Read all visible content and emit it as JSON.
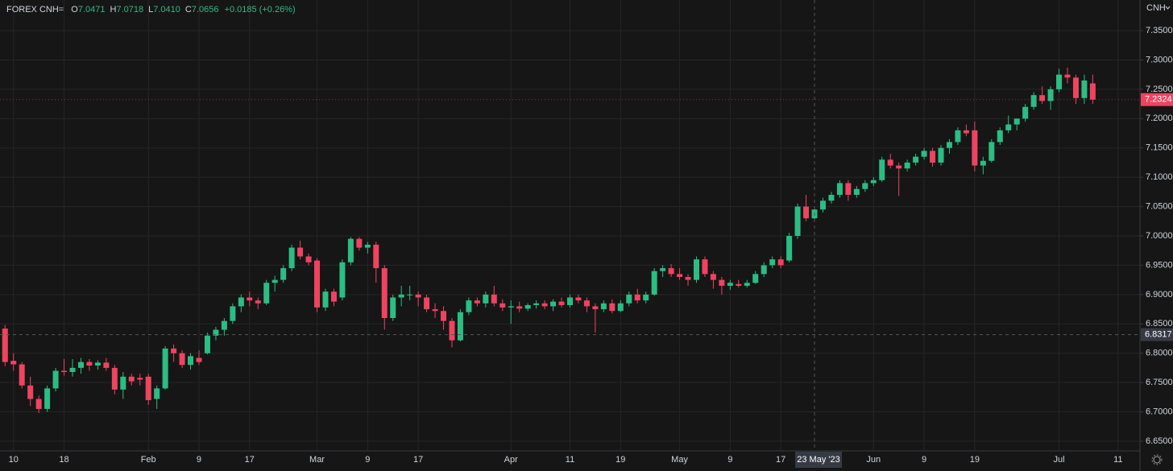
{
  "chart_data": {
    "type": "candlestick",
    "symbol": "FOREX CNH=",
    "ohlc_legend": [
      {
        "label": "O",
        "value": "7.0471"
      },
      {
        "label": "H",
        "value": "7.0718"
      },
      {
        "label": "L",
        "value": "7.0410"
      },
      {
        "label": "C",
        "value": "7.0656"
      }
    ],
    "change": "+0.0185 (+0.26%)",
    "currency": "CNH",
    "up_color": "#2bbd84",
    "down_color": "#ee4460",
    "grid": true,
    "xlim": [
      -0.6,
      134.6
    ],
    "ylim": [
      6.6335,
      7.4022
    ],
    "yticks": [
      {
        "value": 7.35,
        "label": "7.3500"
      },
      {
        "value": 7.3,
        "label": "7.3000"
      },
      {
        "value": 7.25,
        "label": "7.2500"
      },
      {
        "value": 7.2,
        "label": "7.2000"
      },
      {
        "value": 7.15,
        "label": "7.1500"
      },
      {
        "value": 7.1,
        "label": "7.1000"
      },
      {
        "value": 7.05,
        "label": "7.0500"
      },
      {
        "value": 7.0,
        "label": "7.0000"
      },
      {
        "value": 6.95,
        "label": "6.9500"
      },
      {
        "value": 6.9,
        "label": "6.9000"
      },
      {
        "value": 6.85,
        "label": "6.8500"
      },
      {
        "value": 6.8,
        "label": "6.8000"
      },
      {
        "value": 6.75,
        "label": "6.7500"
      },
      {
        "value": 6.7,
        "label": "6.7000"
      },
      {
        "value": 6.65,
        "label": "6.6500"
      }
    ],
    "xticks": [
      {
        "value": 1,
        "label": "10"
      },
      {
        "value": 7,
        "label": "18"
      },
      {
        "value": 17,
        "label": "Feb"
      },
      {
        "value": 23,
        "label": "9"
      },
      {
        "value": 29,
        "label": "17"
      },
      {
        "value": 37,
        "label": "Mar"
      },
      {
        "value": 43,
        "label": "9"
      },
      {
        "value": 49,
        "label": "17"
      },
      {
        "value": 60,
        "label": "Apr"
      },
      {
        "value": 67,
        "label": "11"
      },
      {
        "value": 73,
        "label": "19"
      },
      {
        "value": 80,
        "label": "May"
      },
      {
        "value": 86,
        "label": "9"
      },
      {
        "value": 92,
        "label": "17"
      },
      {
        "value": 103,
        "label": "Jun"
      },
      {
        "value": 109,
        "label": "9"
      },
      {
        "value": 115,
        "label": "19"
      },
      {
        "value": 125,
        "label": "Jul"
      },
      {
        "value": 132,
        "label": "11"
      }
    ],
    "crosshair": {
      "x": 96,
      "date": "23 May '23",
      "price": 6.8317
    },
    "open": [
      6.842,
      6.787,
      6.781,
      6.745,
      6.722,
      6.705,
      6.74,
      6.77,
      6.768,
      6.775,
      6.785,
      6.779,
      6.784,
      6.775,
      6.738,
      6.76,
      6.758,
      6.76,
      6.722,
      6.74,
      6.808,
      6.8,
      6.78,
      6.792,
      6.8,
      6.83,
      6.84,
      6.855,
      6.88,
      6.895,
      6.89,
      6.885,
      6.92,
      6.925,
      6.945,
      6.98,
      6.965,
      6.958,
      6.878,
      6.905,
      6.895,
      6.955,
      6.995,
      6.98,
      6.985,
      6.945,
      6.86,
      6.895,
      6.9,
      6.9,
      6.895,
      6.875,
      6.872,
      6.855,
      6.822,
      6.87,
      6.89,
      6.885,
      6.9,
      6.885,
      6.878,
      6.88,
      6.876,
      6.882,
      6.885,
      6.88,
      6.888,
      6.882,
      6.895,
      6.89,
      6.88,
      6.875,
      6.885,
      6.872,
      6.885,
      6.9,
      6.89,
      6.9,
      6.94,
      6.945,
      6.935,
      6.93,
      6.925,
      6.96,
      6.935,
      6.925,
      6.915,
      6.918,
      6.915,
      6.92,
      6.935,
      6.95,
      6.96,
      6.958,
      7.0,
      7.05,
      7.03,
      7.045,
      7.06,
      7.07,
      7.09,
      7.07,
      7.08,
      7.09,
      7.095,
      7.13,
      7.12,
      7.115,
      7.125,
      7.135,
      7.145,
      7.125,
      7.15,
      7.16,
      7.18,
      7.18,
      7.12,
      7.128,
      7.16,
      7.18,
      7.19,
      7.2,
      7.22,
      7.24,
      7.23,
      7.25,
      7.275,
      7.27,
      7.235,
      7.26
    ],
    "high": [
      6.848,
      6.8,
      6.785,
      6.76,
      6.728,
      6.745,
      6.775,
      6.79,
      6.79,
      6.792,
      6.79,
      6.788,
      6.792,
      6.78,
      6.768,
      6.765,
      6.765,
      6.765,
      6.745,
      6.812,
      6.815,
      6.805,
      6.8,
      6.805,
      6.835,
      6.845,
      6.86,
      6.885,
      6.9,
      6.905,
      6.895,
      6.925,
      6.932,
      6.95,
      6.985,
      6.992,
      6.97,
      6.962,
      6.91,
      6.91,
      6.96,
      6.998,
      6.998,
      6.99,
      6.99,
      6.95,
      6.9,
      6.915,
      6.915,
      6.905,
      6.9,
      6.885,
      6.88,
      6.86,
      6.875,
      6.895,
      6.895,
      6.905,
      6.915,
      6.892,
      6.89,
      6.888,
      6.885,
      6.89,
      6.89,
      6.892,
      6.895,
      6.9,
      6.9,
      6.895,
      6.885,
      6.89,
      6.892,
      6.89,
      6.905,
      6.91,
      6.905,
      6.945,
      6.95,
      6.952,
      6.945,
      6.935,
      6.965,
      6.965,
      6.94,
      6.93,
      6.925,
      6.925,
      6.925,
      6.94,
      6.955,
      6.965,
      6.965,
      7.005,
      7.055,
      7.07,
      7.05,
      7.065,
      7.075,
      7.095,
      7.095,
      7.085,
      7.095,
      7.1,
      7.135,
      7.14,
      7.125,
      7.13,
      7.14,
      7.15,
      7.15,
      7.155,
      7.165,
      7.185,
      7.19,
      7.195,
      7.135,
      7.165,
      7.185,
      7.205,
      7.2,
      7.225,
      7.245,
      7.255,
      7.255,
      7.285,
      7.287,
      7.275,
      7.275,
      7.275
    ],
    "low": [
      6.778,
      6.77,
      6.74,
      6.71,
      6.698,
      6.7,
      6.735,
      6.762,
      6.76,
      6.765,
      6.77,
      6.772,
      6.77,
      6.73,
      6.722,
      6.745,
      6.745,
      6.712,
      6.705,
      6.738,
      6.785,
      6.775,
      6.772,
      6.78,
      6.798,
      6.822,
      6.83,
      6.85,
      6.87,
      6.88,
      6.875,
      6.882,
      6.905,
      6.92,
      6.94,
      6.96,
      6.95,
      6.87,
      6.872,
      6.88,
      6.89,
      6.95,
      6.975,
      6.97,
      6.92,
      6.84,
      6.855,
      6.88,
      6.89,
      6.88,
      6.87,
      6.86,
      6.84,
      6.81,
      6.82,
      6.865,
      6.88,
      6.878,
      6.88,
      6.872,
      6.85,
      6.87,
      6.872,
      6.876,
      6.875,
      6.872,
      6.878,
      6.878,
      6.885,
      6.87,
      6.835,
      6.87,
      6.868,
      6.87,
      6.88,
      6.885,
      6.885,
      6.898,
      6.93,
      6.93,
      6.925,
      6.915,
      6.92,
      6.93,
      6.91,
      6.9,
      6.908,
      6.912,
      6.912,
      6.918,
      6.93,
      6.945,
      6.945,
      6.955,
      6.995,
      7.025,
      7.025,
      7.04,
      7.055,
      7.065,
      7.06,
      7.065,
      7.075,
      7.085,
      7.092,
      7.115,
      7.068,
      7.11,
      7.12,
      7.13,
      7.118,
      7.12,
      7.14,
      7.155,
      7.17,
      7.11,
      7.105,
      7.125,
      7.155,
      7.175,
      7.18,
      7.195,
      7.215,
      7.225,
      7.215,
      7.245,
      7.26,
      7.225,
      7.225,
      7.225
    ],
    "close": [
      6.785,
      6.781,
      6.745,
      6.722,
      6.705,
      6.74,
      6.77,
      6.768,
      6.775,
      6.785,
      6.779,
      6.784,
      6.775,
      6.738,
      6.76,
      6.752,
      6.755,
      6.72,
      6.74,
      6.808,
      6.8,
      6.78,
      6.795,
      6.785,
      6.83,
      6.84,
      6.855,
      6.88,
      6.895,
      6.89,
      6.885,
      6.92,
      6.925,
      6.945,
      6.98,
      6.965,
      6.955,
      6.878,
      6.905,
      6.888,
      6.955,
      6.995,
      6.98,
      6.985,
      6.945,
      6.86,
      6.895,
      6.9,
      6.9,
      6.895,
      6.875,
      6.872,
      6.855,
      6.822,
      6.87,
      6.89,
      6.885,
      6.9,
      6.885,
      6.878,
      6.88,
      6.876,
      6.882,
      6.885,
      6.88,
      6.888,
      6.882,
      6.895,
      6.89,
      6.88,
      6.875,
      6.885,
      6.872,
      6.885,
      6.9,
      6.89,
      6.9,
      6.94,
      6.945,
      6.935,
      6.93,
      6.925,
      6.96,
      6.935,
      6.925,
      6.915,
      6.92,
      6.915,
      6.92,
      6.935,
      6.95,
      6.96,
      6.95,
      7.0,
      7.05,
      7.03,
      7.045,
      7.06,
      7.07,
      7.09,
      7.07,
      7.08,
      7.09,
      7.095,
      7.13,
      7.12,
      7.115,
      7.125,
      7.135,
      7.145,
      7.125,
      7.15,
      7.16,
      7.18,
      7.175,
      7.12,
      7.128,
      7.16,
      7.18,
      7.19,
      7.2,
      7.22,
      7.24,
      7.23,
      7.25,
      7.275,
      7.27,
      7.235,
      7.265,
      7.2324
    ]
  }
}
